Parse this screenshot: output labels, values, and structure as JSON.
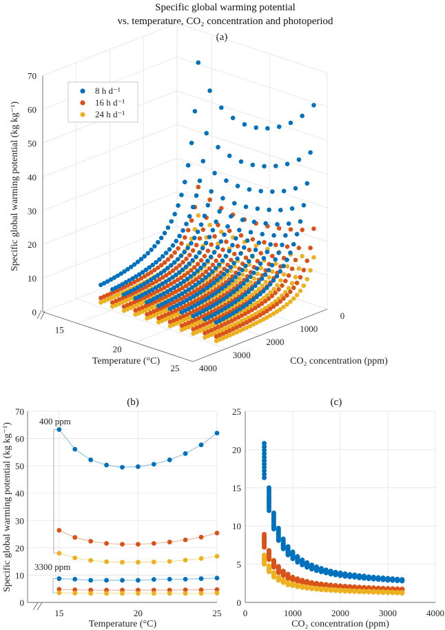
{
  "figure": {
    "title_line1": "Specific global warming potential",
    "title_line2": "vs. temperature, CO₂ concentration and photoperiod"
  },
  "colors": {
    "8h": "#0072BD",
    "16h": "#D95319",
    "24h": "#EDB120"
  },
  "chart_data": [
    {
      "panel": "(a)",
      "type": "scatter",
      "projection": "3d",
      "xlabel": "Temperature (°C)",
      "ylabel": "CO₂ concentration (ppm)",
      "zlabel": "Specific global warming potential (kg kg⁻¹)",
      "x_ticks": [
        "15",
        "20",
        "25"
      ],
      "y_ticks": [
        "0",
        "1000",
        "2000",
        "3000",
        "4000"
      ],
      "z_ticks": [
        "0",
        "10",
        "20",
        "30",
        "40",
        "50",
        "60",
        "70"
      ],
      "xlim": [
        12,
        25
      ],
      "ylim": [
        0,
        4000
      ],
      "zlim": [
        0,
        70
      ],
      "grid": true,
      "legend": {
        "placement": "upper-left",
        "entries": [
          "8 h d⁻¹",
          "16 h d⁻¹",
          "24 h d⁻¹"
        ]
      },
      "temperatures": [
        15,
        16,
        17,
        18,
        19,
        20,
        21,
        22,
        23,
        24,
        25
      ],
      "co2_range": [
        400,
        3300
      ],
      "co2_step": 100,
      "series": [
        {
          "name": "8 h d⁻¹",
          "key": "8h",
          "at_400": [
            63.3,
            56.1,
            52.2,
            50.3,
            49.5,
            49.7,
            50.6,
            52.2,
            54.5,
            57.7,
            62.0
          ],
          "at_3300": [
            8.7,
            8.5,
            8.1,
            8.1,
            8.1,
            8.1,
            8.4,
            8.5,
            8.5,
            8.7,
            8.9
          ]
        },
        {
          "name": "16 h d⁻¹",
          "key": "16h",
          "at_400": [
            26.4,
            23.8,
            22.4,
            21.6,
            21.3,
            21.3,
            21.6,
            22.1,
            22.9,
            23.9,
            25.4
          ],
          "at_3300": [
            4.8,
            4.6,
            4.5,
            4.5,
            4.5,
            4.5,
            4.5,
            4.5,
            4.6,
            4.6,
            4.7
          ]
        },
        {
          "name": "24 h d⁻¹",
          "key": "24h",
          "at_400": [
            18.0,
            16.3,
            15.4,
            14.9,
            14.7,
            14.7,
            14.8,
            15.0,
            15.5,
            16.1,
            16.9
          ],
          "at_3300": [
            3.5,
            3.4,
            3.3,
            3.3,
            3.3,
            3.3,
            3.3,
            3.3,
            3.3,
            3.3,
            3.4
          ]
        }
      ]
    },
    {
      "panel": "(b)",
      "type": "line",
      "xlabel": "Temperature (°C)",
      "ylabel": "Specific global warming potential (kg kg⁻¹)",
      "x_ticks": [
        "15",
        "20",
        "25"
      ],
      "y_ticks": [
        "0",
        "10",
        "20",
        "30",
        "40",
        "50",
        "60",
        "70"
      ],
      "xlim": [
        13,
        25
      ],
      "ylim": [
        0,
        70
      ],
      "grid": true,
      "annotations": [
        "400 ppm",
        "3300 ppm"
      ],
      "x": [
        15,
        16,
        17,
        18,
        19,
        20,
        21,
        22,
        23,
        24,
        25
      ],
      "series": [
        {
          "key": "8h",
          "co2": 400,
          "values": [
            63.3,
            56.1,
            52.2,
            50.3,
            49.5,
            49.7,
            50.6,
            52.2,
            54.5,
            57.7,
            62.0
          ]
        },
        {
          "key": "16h",
          "co2": 400,
          "values": [
            26.4,
            23.8,
            22.4,
            21.6,
            21.3,
            21.3,
            21.6,
            22.1,
            22.9,
            23.9,
            25.4
          ]
        },
        {
          "key": "24h",
          "co2": 400,
          "values": [
            18.0,
            16.3,
            15.4,
            14.9,
            14.7,
            14.7,
            14.8,
            15.0,
            15.5,
            16.1,
            16.9
          ]
        },
        {
          "key": "8h",
          "co2": 3300,
          "values": [
            8.7,
            8.5,
            8.1,
            8.1,
            8.1,
            8.1,
            8.4,
            8.5,
            8.5,
            8.7,
            8.9
          ]
        },
        {
          "key": "16h",
          "co2": 3300,
          "values": [
            4.8,
            4.6,
            4.5,
            4.5,
            4.5,
            4.5,
            4.5,
            4.5,
            4.6,
            4.6,
            4.7
          ]
        },
        {
          "key": "24h",
          "co2": 3300,
          "values": [
            3.5,
            3.4,
            3.3,
            3.3,
            3.3,
            3.3,
            3.3,
            3.3,
            3.3,
            3.3,
            3.4
          ]
        }
      ]
    },
    {
      "panel": "(c)",
      "type": "scatter",
      "xlabel": "CO₂ concentration (ppm)",
      "ylabel": "",
      "x_ticks": [
        "0",
        "1000",
        "2000",
        "3000",
        "4000"
      ],
      "y_ticks": [
        "0",
        "5",
        "10",
        "15",
        "20",
        "25"
      ],
      "xlim": [
        0,
        4000
      ],
      "ylim": [
        0,
        25
      ],
      "grid": true,
      "x": [
        400,
        500,
        600,
        700,
        800,
        900,
        1000,
        1100,
        1200,
        1300,
        1400,
        1500,
        1600,
        1700,
        1800,
        1900,
        2000,
        2100,
        2200,
        2300,
        2400,
        2500,
        2600,
        2700,
        2800,
        2900,
        3000,
        3100,
        3200,
        3300
      ],
      "series": [
        {
          "key": "8h",
          "y_min": [
            16.3,
            12.0,
            9.6,
            8.1,
            7.0,
            6.2,
            5.7,
            5.25,
            4.9,
            4.6,
            4.35,
            4.15,
            4.0,
            3.85,
            3.7,
            3.6,
            3.5,
            3.4,
            3.35,
            3.3,
            3.2,
            3.15,
            3.1,
            3.05,
            3.0,
            2.95,
            2.9,
            2.87,
            2.83,
            2.8
          ],
          "y_max": [
            20.8,
            15.0,
            11.7,
            9.7,
            8.3,
            7.3,
            6.6,
            6.0,
            5.55,
            5.2,
            4.9,
            4.65,
            4.45,
            4.25,
            4.1,
            3.95,
            3.85,
            3.75,
            3.65,
            3.6,
            3.5,
            3.45,
            3.35,
            3.3,
            3.25,
            3.2,
            3.15,
            3.1,
            3.05,
            3.0
          ]
        },
        {
          "key": "16h",
          "y_min": [
            7.2,
            5.6,
            4.6,
            3.9,
            3.5,
            3.1,
            2.9,
            2.7,
            2.55,
            2.4,
            2.3,
            2.2,
            2.15,
            2.1,
            2.05,
            2.0,
            1.95,
            1.9,
            1.85,
            1.82,
            1.8,
            1.77,
            1.74,
            1.72,
            1.7,
            1.68,
            1.66,
            1.64,
            1.62,
            1.6
          ],
          "y_max": [
            8.9,
            6.8,
            5.5,
            4.7,
            4.1,
            3.7,
            3.3,
            3.1,
            2.9,
            2.75,
            2.6,
            2.5,
            2.42,
            2.35,
            2.28,
            2.22,
            2.17,
            2.12,
            2.08,
            2.04,
            2.0,
            1.97,
            1.94,
            1.91,
            1.88,
            1.85,
            1.82,
            1.8,
            1.77,
            1.75
          ]
        },
        {
          "key": "24h",
          "y_min": [
            5.0,
            4.0,
            3.3,
            2.9,
            2.6,
            2.3,
            2.2,
            2.05,
            1.95,
            1.85,
            1.78,
            1.72,
            1.66,
            1.62,
            1.58,
            1.54,
            1.5,
            1.47,
            1.44,
            1.42,
            1.4,
            1.38,
            1.36,
            1.34,
            1.32,
            1.3,
            1.28,
            1.26,
            1.24,
            1.2
          ],
          "y_max": [
            6.2,
            4.8,
            3.9,
            3.3,
            2.9,
            2.6,
            2.4,
            2.25,
            2.12,
            2.02,
            1.94,
            1.87,
            1.8,
            1.75,
            1.7,
            1.66,
            1.62,
            1.58,
            1.55,
            1.52,
            1.5,
            1.48,
            1.46,
            1.44,
            1.42,
            1.4,
            1.38,
            1.36,
            1.34,
            1.3
          ]
        }
      ]
    }
  ]
}
